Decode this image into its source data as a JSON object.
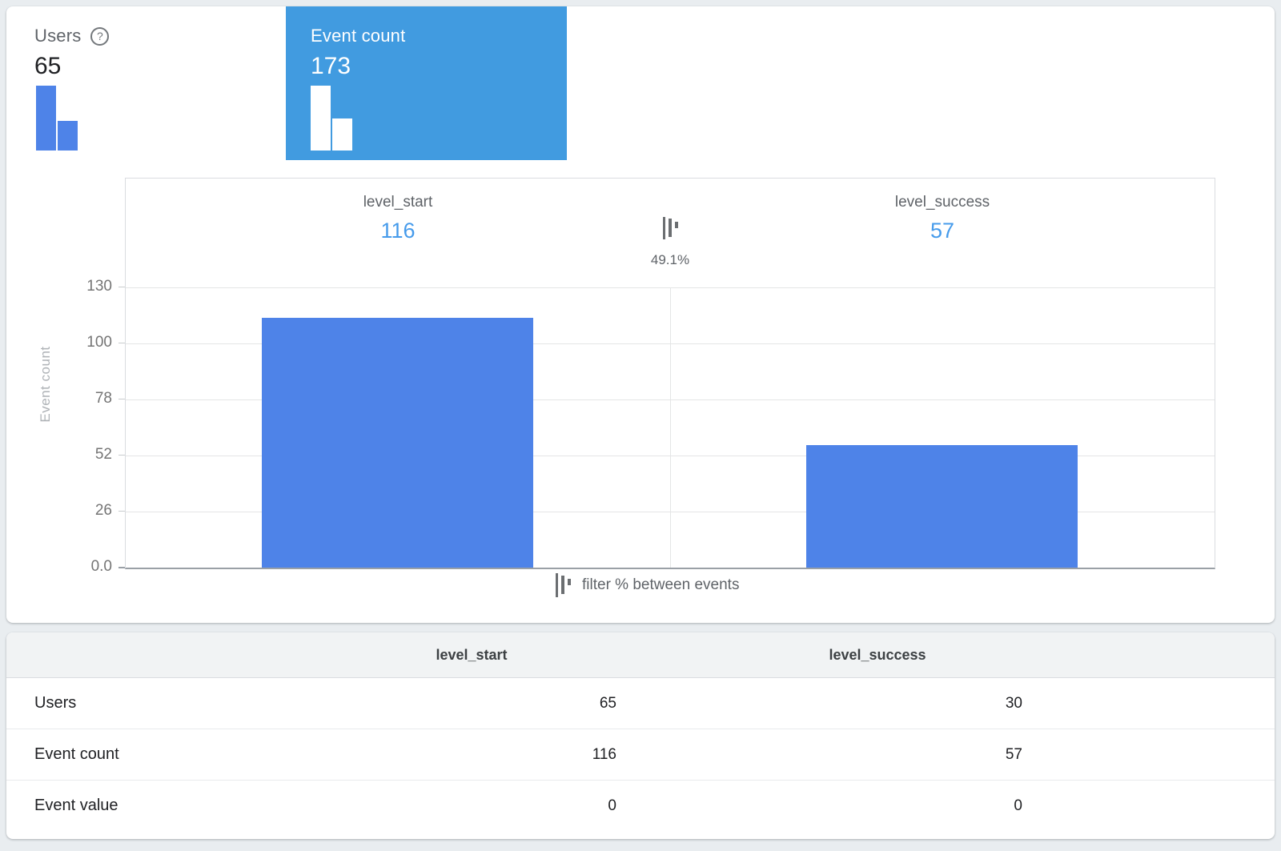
{
  "colors": {
    "page-bg": "#E9EDF0",
    "card-blue": "#419BE0",
    "bar-blue": "#4E83E8",
    "number-blue": "#469BEB",
    "icon-gray": "#6B6E71"
  },
  "help_icon": "?",
  "metric_cards": [
    {
      "label": "Users",
      "value": "65",
      "selected": false,
      "mini_bars": [
        65,
        30
      ]
    },
    {
      "label": "Event count",
      "value": "173",
      "selected": true,
      "mini_bars": [
        116,
        57
      ]
    }
  ],
  "chart_data": {
    "type": "bar",
    "title": "",
    "categories": [
      "level_start",
      "level_success"
    ],
    "values": [
      116,
      57
    ],
    "value_labels": [
      "116",
      "57"
    ],
    "filter_percent": "49.1%",
    "ylabel": "Event count",
    "yticks": [
      "130",
      "100",
      "78",
      "52",
      "26",
      "0.0"
    ],
    "ylim": [
      0,
      130
    ],
    "grid": true,
    "legend": "filter % between events",
    "legend_position": "bottom-center"
  },
  "table": {
    "columns": [
      "level_start",
      "level_success"
    ],
    "rows": [
      {
        "label": "Users",
        "values": [
          "65",
          "30"
        ]
      },
      {
        "label": "Event count",
        "values": [
          "116",
          "57"
        ]
      },
      {
        "label": "Event value",
        "values": [
          "0",
          "0"
        ]
      }
    ]
  }
}
